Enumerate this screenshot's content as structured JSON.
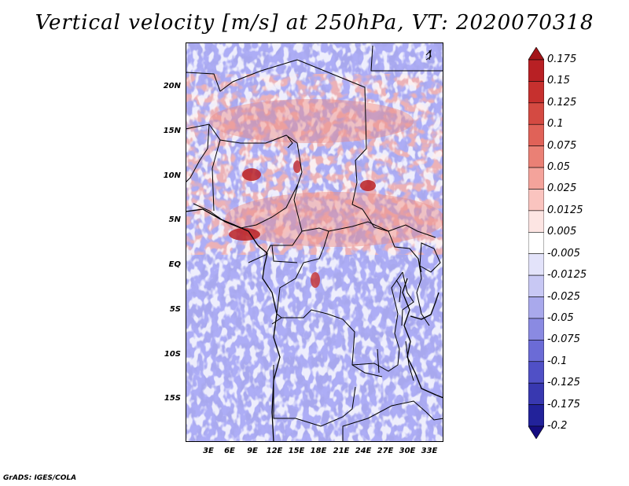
{
  "title": "Vertical velocity [m/s] at 250hPa, VT: 2020070318",
  "footer": "GrADS: IGES/COLA",
  "map": {
    "variable": "Vertical velocity",
    "units": "m/s",
    "level": "250hPa",
    "valid_time": "2020070318",
    "lat_labels": [
      "20N",
      "15N",
      "10N",
      "5N",
      "EQ",
      "5S",
      "10S",
      "15S"
    ],
    "lon_labels": [
      "3E",
      "6E",
      "9E",
      "12E",
      "15E",
      "18E",
      "21E",
      "24E",
      "27E",
      "30E",
      "33E"
    ]
  },
  "colorbar": {
    "labels": [
      "0.175",
      "0.15",
      "0.125",
      "0.1",
      "0.075",
      "0.05",
      "0.025",
      "0.0125",
      "0.005",
      "-0.005",
      "-0.0125",
      "-0.025",
      "-0.05",
      "-0.075",
      "-0.1",
      "-0.125",
      "-0.175",
      "-0.2"
    ],
    "colors": [
      "#a31418",
      "#b82024",
      "#c6302e",
      "#d44a42",
      "#e06258",
      "#ea8075",
      "#f4a39b",
      "#fac4bf",
      "#fde5e3",
      "#ffffff",
      "#e3e3fa",
      "#c8c8f4",
      "#a9a9ec",
      "#8a8ae2",
      "#6b6bd6",
      "#5050c6",
      "#3838b0",
      "#22229a",
      "#150c80"
    ]
  }
}
